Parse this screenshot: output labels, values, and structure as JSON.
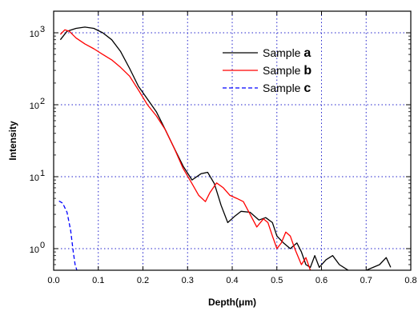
{
  "chart_data": {
    "type": "line",
    "title": "",
    "xlabel": "Depth(μm)",
    "ylabel": "Intensity",
    "xlim": [
      0.0,
      0.8
    ],
    "ylim_log10": [
      -0.3,
      3.3
    ],
    "y_scale": "log",
    "grid": true,
    "legend_position": "top-right",
    "x_ticks": [
      "0.0",
      "0.1",
      "0.2",
      "0.3",
      "0.4",
      "0.5",
      "0.6",
      "0.7",
      "0.8"
    ],
    "y_ticks": [
      {
        "base": "10",
        "exp": "0",
        "value": 1
      },
      {
        "base": "10",
        "exp": "1",
        "value": 10
      },
      {
        "base": "10",
        "exp": "2",
        "value": 100
      },
      {
        "base": "10",
        "exp": "3",
        "value": 1000
      }
    ],
    "series": [
      {
        "name": "Sample ",
        "letter": "a",
        "color": "#000000",
        "dash": "solid",
        "points": [
          [
            0.015,
            800
          ],
          [
            0.03,
            1050
          ],
          [
            0.05,
            1150
          ],
          [
            0.07,
            1200
          ],
          [
            0.09,
            1150
          ],
          [
            0.11,
            1000
          ],
          [
            0.13,
            800
          ],
          [
            0.15,
            550
          ],
          [
            0.17,
            320
          ],
          [
            0.19,
            180
          ],
          [
            0.21,
            120
          ],
          [
            0.23,
            80
          ],
          [
            0.25,
            45
          ],
          [
            0.27,
            25
          ],
          [
            0.29,
            14
          ],
          [
            0.31,
            9
          ],
          [
            0.33,
            11
          ],
          [
            0.345,
            11.5
          ],
          [
            0.36,
            8
          ],
          [
            0.375,
            4
          ],
          [
            0.39,
            2.3
          ],
          [
            0.405,
            2.8
          ],
          [
            0.42,
            3.3
          ],
          [
            0.44,
            3.2
          ],
          [
            0.46,
            2.5
          ],
          [
            0.475,
            2.7
          ],
          [
            0.49,
            2.3
          ],
          [
            0.5,
            1.5
          ],
          [
            0.515,
            1.2
          ],
          [
            0.53,
            1.0
          ],
          [
            0.545,
            1.2
          ],
          [
            0.555,
            0.9
          ],
          [
            0.565,
            0.6
          ],
          [
            0.575,
            0.55
          ],
          [
            0.585,
            0.8
          ],
          [
            0.595,
            0.55
          ],
          [
            0.61,
            0.7
          ],
          [
            0.625,
            0.8
          ],
          [
            0.64,
            0.6
          ],
          [
            0.66,
            0.5
          ],
          [
            0.7,
            0.5
          ],
          [
            0.73,
            0.6
          ],
          [
            0.745,
            0.75
          ],
          [
            0.755,
            0.55
          ]
        ]
      },
      {
        "name": "Sample ",
        "letter": "b",
        "color": "#ff0000",
        "dash": "solid",
        "points": [
          [
            0.015,
            950
          ],
          [
            0.025,
            1100
          ],
          [
            0.035,
            1050
          ],
          [
            0.05,
            850
          ],
          [
            0.07,
            700
          ],
          [
            0.09,
            600
          ],
          [
            0.11,
            500
          ],
          [
            0.13,
            420
          ],
          [
            0.15,
            330
          ],
          [
            0.17,
            250
          ],
          [
            0.19,
            160
          ],
          [
            0.21,
            100
          ],
          [
            0.23,
            70
          ],
          [
            0.25,
            45
          ],
          [
            0.27,
            25
          ],
          [
            0.29,
            13
          ],
          [
            0.31,
            8
          ],
          [
            0.325,
            5.5
          ],
          [
            0.34,
            4.5
          ],
          [
            0.35,
            6
          ],
          [
            0.365,
            8.2
          ],
          [
            0.38,
            7
          ],
          [
            0.395,
            5.5
          ],
          [
            0.41,
            5
          ],
          [
            0.425,
            4.5
          ],
          [
            0.44,
            3
          ],
          [
            0.455,
            2
          ],
          [
            0.47,
            2.6
          ],
          [
            0.48,
            2.3
          ],
          [
            0.49,
            1.5
          ],
          [
            0.5,
            1
          ],
          [
            0.51,
            1.2
          ],
          [
            0.52,
            1.7
          ],
          [
            0.53,
            1.5
          ],
          [
            0.54,
            1.0
          ],
          [
            0.555,
            0.6
          ],
          [
            0.565,
            0.75
          ],
          [
            0.575,
            0.5
          ]
        ]
      },
      {
        "name": "Sample ",
        "letter": "c",
        "color": "#0000ff",
        "dash": "dashed",
        "points": [
          [
            0.012,
            4.6
          ],
          [
            0.02,
            4.3
          ],
          [
            0.03,
            3.2
          ],
          [
            0.038,
            1.8
          ],
          [
            0.044,
            0.9
          ],
          [
            0.048,
            0.6
          ],
          [
            0.052,
            0.5
          ]
        ]
      }
    ]
  }
}
